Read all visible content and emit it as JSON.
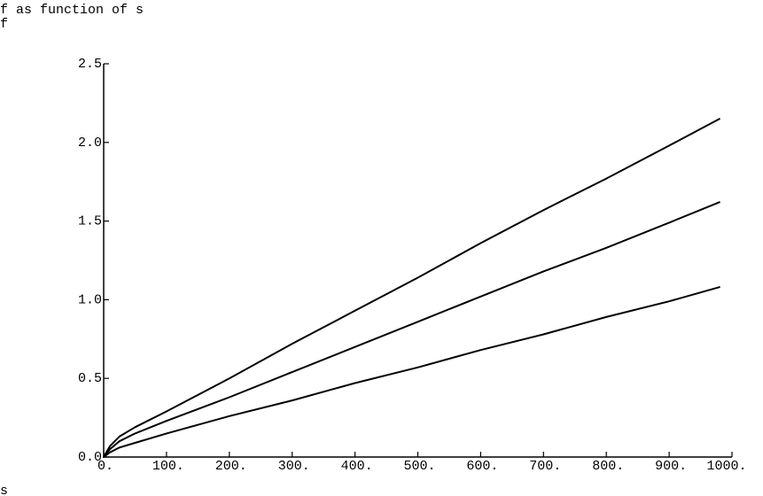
{
  "chart_data": {
    "type": "line",
    "title": "f as function of s",
    "ylabel": "f",
    "xlabel": "s",
    "xlim": [
      0,
      1000
    ],
    "ylim": [
      0,
      2.5
    ],
    "grid": false,
    "x_tick_labels": [
      "0.",
      "100.",
      "200.",
      "300.",
      "400.",
      "500.",
      "600.",
      "700.",
      "800.",
      "900.",
      "1000."
    ],
    "x_tick_values": [
      0,
      100,
      200,
      300,
      400,
      500,
      600,
      700,
      800,
      900,
      1000
    ],
    "y_tick_labels": [
      "0.0",
      "0.5",
      "1.0",
      "1.5",
      "2.0",
      "2.5"
    ],
    "y_tick_values": [
      0,
      0.5,
      1.0,
      1.5,
      2.0,
      2.5
    ],
    "series": [
      {
        "x": [
          0,
          10,
          25,
          50,
          100,
          200,
          300,
          400,
          500,
          600,
          700,
          800,
          900,
          980
        ],
        "y": [
          0,
          0.07,
          0.13,
          0.19,
          0.29,
          0.5,
          0.72,
          0.93,
          1.14,
          1.36,
          1.57,
          1.77,
          1.98,
          2.15
        ],
        "color": "#000000"
      },
      {
        "x": [
          0,
          10,
          25,
          50,
          100,
          200,
          300,
          400,
          500,
          600,
          700,
          800,
          900,
          980
        ],
        "y": [
          0,
          0.05,
          0.1,
          0.15,
          0.23,
          0.38,
          0.54,
          0.7,
          0.86,
          1.02,
          1.18,
          1.33,
          1.49,
          1.62
        ],
        "color": "#000000"
      },
      {
        "x": [
          0,
          10,
          25,
          50,
          100,
          200,
          300,
          400,
          500,
          600,
          700,
          800,
          900,
          980
        ],
        "y": [
          0,
          0.03,
          0.06,
          0.09,
          0.15,
          0.26,
          0.36,
          0.47,
          0.57,
          0.68,
          0.78,
          0.89,
          0.99,
          1.08
        ],
        "color": "#000000"
      }
    ]
  }
}
